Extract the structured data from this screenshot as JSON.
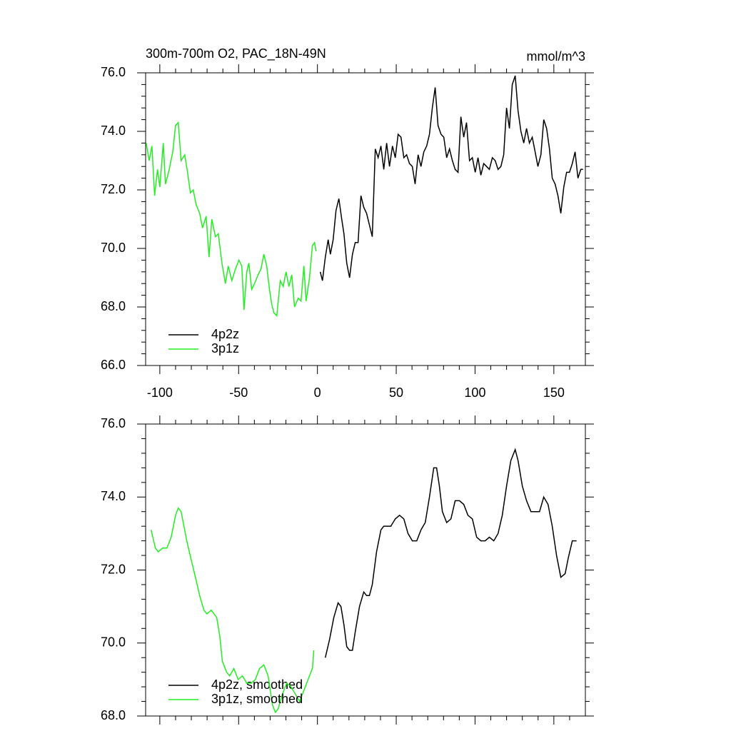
{
  "chart_data": [
    {
      "type": "line",
      "title": "300m-700m O2, PAC_18N-49N",
      "subtitle": "mmol/m^3",
      "xlim": [
        -109,
        170
      ],
      "xticks": [
        -100,
        -50,
        0,
        50,
        100,
        150
      ],
      "ylim": [
        66,
        76
      ],
      "yticks": [
        {
          "value": 66,
          "label": "66.0"
        },
        {
          "value": 68,
          "label": "68.0"
        },
        {
          "value": 70,
          "label": "70.0"
        },
        {
          "value": 72,
          "label": "72.0"
        },
        {
          "value": 74,
          "label": "74.0"
        },
        {
          "value": 76,
          "label": "76.0"
        }
      ],
      "legend": "lower left",
      "series": [
        {
          "name": "4p2z",
          "color": "#000000",
          "x": [
            1.8,
            3.2,
            5,
            6.8,
            8.2,
            10,
            11.8,
            13.6,
            15.4,
            16.8,
            18.6,
            20.4,
            22.2,
            24,
            25.8,
            27.6,
            29.4,
            31.2,
            33,
            34.8,
            36.7,
            38.5,
            40.3,
            42.1,
            43.9,
            45.7,
            47.6,
            49.4,
            51.2,
            53,
            54.8,
            56.6,
            58.4,
            60.2,
            62,
            63.9,
            65.7,
            67.5,
            69.3,
            71.1,
            72.9,
            74.7,
            76.5,
            78.4,
            80.2,
            82,
            83.8,
            85.6,
            87.4,
            89.2,
            91,
            92.8,
            94.6,
            96.5,
            98.3,
            100.1,
            101.9,
            103.7,
            105.5,
            107.3,
            109.1,
            111,
            112.8,
            114.6,
            116.4,
            118.2,
            120,
            121.8,
            123.6,
            125.5,
            127.3,
            129.1,
            130.9,
            132.7,
            134.5,
            136.3,
            138.1,
            139.9,
            141.8,
            143.6,
            145.4,
            147.2,
            149,
            150.8,
            152.6,
            154.4,
            156.3,
            158.1,
            159.9,
            161.7,
            163.5,
            165.3,
            167.1,
            168.5
          ],
          "values": [
            69.2,
            68.9,
            69.7,
            70.3,
            69.8,
            70.3,
            71.3,
            71.7,
            71.0,
            70.5,
            69.5,
            69.0,
            69.8,
            70.2,
            70.2,
            71.8,
            71.4,
            71.2,
            70.8,
            70.4,
            73.4,
            73.1,
            73.5,
            72.7,
            73.6,
            72.8,
            73.5,
            73.1,
            73.9,
            73.8,
            73.1,
            73.2,
            72.9,
            72.8,
            72.2,
            73.2,
            72.8,
            73.3,
            73.5,
            73.9,
            74.8,
            75.5,
            74.2,
            73.9,
            73.8,
            73.1,
            73.4,
            73.0,
            72.7,
            72.6,
            74.5,
            73.8,
            74.3,
            73.0,
            73.1,
            72.6,
            73.1,
            72.5,
            72.9,
            72.8,
            72.7,
            73.1,
            73.0,
            72.7,
            72.8,
            73.2,
            74.8,
            74.1,
            75.6,
            75.9,
            74.7,
            74.0,
            73.6,
            74.1,
            73.6,
            73.8,
            73.3,
            72.8,
            73.2,
            74.4,
            74.1,
            73.4,
            72.4,
            72.2,
            71.8,
            71.2,
            72.1,
            72.6,
            72.6,
            72.9,
            73.3,
            72.4,
            72.7,
            72.7
          ]
        },
        {
          "name": "3p1z",
          "color": "#22ee22",
          "x": [
            -108.6,
            -106.8,
            -105,
            -103.3,
            -101.5,
            -100,
            -97.8,
            -96.4,
            -94,
            -91.8,
            -90,
            -88.3,
            -86.5,
            -84.2,
            -82.4,
            -80.6,
            -78.8,
            -77,
            -74.7,
            -72.9,
            -70.6,
            -68.8,
            -67,
            -64.7,
            -62.9,
            -60.6,
            -58.4,
            -56.6,
            -54.3,
            -52,
            -49.8,
            -48,
            -46.6,
            -44.8,
            -43.5,
            -41.7,
            -39.9,
            -37.6,
            -35.8,
            -34,
            -32.2,
            -30.4,
            -29,
            -27.6,
            -25.8,
            -23.6,
            -21.7,
            -19.9,
            -18.1,
            -16.3,
            -14.5,
            -12.2,
            -10.4,
            -8.6,
            -7.2,
            -5,
            -3.2,
            -1.8,
            -0.9
          ],
          "values": [
            73.6,
            73.0,
            73.5,
            71.8,
            72.7,
            72.1,
            73.6,
            72.2,
            72.7,
            73.3,
            74.2,
            74.3,
            73.0,
            73.2,
            72.6,
            71.9,
            72.0,
            71.5,
            71.2,
            70.7,
            71.1,
            69.7,
            71.0,
            70.4,
            70.5,
            69.5,
            68.8,
            69.4,
            68.9,
            69.3,
            69.6,
            69.4,
            67.9,
            69.2,
            69.5,
            68.6,
            68.8,
            69.1,
            69.3,
            69.8,
            69.4,
            68.6,
            68.1,
            67.8,
            67.7,
            68.9,
            68.7,
            69.2,
            68.7,
            69.1,
            68.0,
            68.3,
            68.2,
            69.4,
            68.2,
            69.0,
            70.1,
            70.2,
            69.9
          ]
        }
      ]
    },
    {
      "type": "line",
      "xlim": [
        -109,
        170
      ],
      "xticks": [
        -100,
        -50,
        0,
        50,
        100,
        150
      ],
      "ylim": [
        68,
        76
      ],
      "yticks": [
        {
          "value": 68,
          "label": "68.0"
        },
        {
          "value": 70,
          "label": "70.0"
        },
        {
          "value": 72,
          "label": "72.0"
        },
        {
          "value": 74,
          "label": "74.0"
        },
        {
          "value": 76,
          "label": "76.0"
        }
      ],
      "legend": "lower left",
      "series": [
        {
          "name": "4p2z, smoothed",
          "color": "#000000",
          "x": [
            5,
            7.7,
            10.4,
            13.1,
            14.9,
            16.8,
            18.6,
            20.4,
            22.2,
            24,
            26.7,
            29.4,
            31.2,
            33,
            34.8,
            37.5,
            40.3,
            42.1,
            43.9,
            46.6,
            49.4,
            52.1,
            54.8,
            57.5,
            60.2,
            63,
            65.7,
            68.4,
            71.1,
            73.8,
            75.6,
            77.4,
            79.3,
            82,
            84.7,
            87.4,
            90.1,
            92.8,
            95.5,
            98.3,
            101,
            103.7,
            106.4,
            109.1,
            111.9,
            114.6,
            117.3,
            120,
            122.7,
            125.5,
            127.3,
            130,
            132.7,
            135.5,
            138.1,
            140.9,
            143.6,
            146.3,
            149,
            151.7,
            154.4,
            157.2,
            159,
            161.7,
            164.4
          ],
          "values": [
            69.6,
            70.1,
            70.7,
            71.1,
            71.0,
            70.5,
            69.9,
            69.8,
            69.8,
            70.3,
            71.0,
            71.4,
            71.3,
            71.3,
            71.6,
            72.5,
            73.1,
            73.2,
            73.2,
            73.2,
            73.4,
            73.5,
            73.4,
            73.0,
            72.8,
            72.8,
            73.1,
            73.3,
            74.0,
            74.8,
            74.8,
            74.3,
            73.6,
            73.3,
            73.4,
            73.9,
            73.9,
            73.8,
            73.5,
            73.4,
            72.9,
            72.8,
            72.8,
            72.9,
            72.8,
            73.0,
            73.5,
            74.3,
            75.0,
            75.3,
            75.0,
            74.3,
            73.9,
            73.6,
            73.6,
            73.6,
            74.0,
            73.8,
            73.2,
            72.4,
            71.8,
            71.9,
            72.3,
            72.8,
            72.8
          ]
        },
        {
          "name": "3p1z, smoothed",
          "color": "#22ee22",
          "x": [
            -105.5,
            -102.8,
            -101,
            -98.2,
            -95.5,
            -92.8,
            -90,
            -88.3,
            -86.5,
            -84.7,
            -82.9,
            -80.2,
            -77.4,
            -74.7,
            -72,
            -70.2,
            -67.4,
            -65.6,
            -63.9,
            -62,
            -60.3,
            -57.6,
            -55.7,
            -53,
            -50.3,
            -47.6,
            -44.8,
            -42.1,
            -39.4,
            -36.7,
            -34,
            -31.3,
            -28.5,
            -26.7,
            -24.9,
            -22.2,
            -19.5,
            -16.8,
            -14,
            -11.3,
            -8.6,
            -5.9,
            -3.2,
            -2.3
          ],
          "values": [
            73.1,
            72.6,
            72.5,
            72.6,
            72.6,
            72.9,
            73.5,
            73.7,
            73.6,
            73.2,
            72.8,
            72.3,
            71.8,
            71.3,
            70.9,
            70.8,
            70.9,
            70.8,
            70.7,
            70.2,
            69.5,
            69.2,
            69.1,
            69.3,
            69.0,
            69.1,
            68.9,
            68.9,
            69.0,
            69.3,
            69.4,
            69.1,
            68.3,
            68.1,
            68.2,
            68.6,
            68.9,
            68.8,
            68.6,
            68.4,
            68.7,
            69.0,
            69.3,
            69.8
          ]
        }
      ]
    }
  ]
}
